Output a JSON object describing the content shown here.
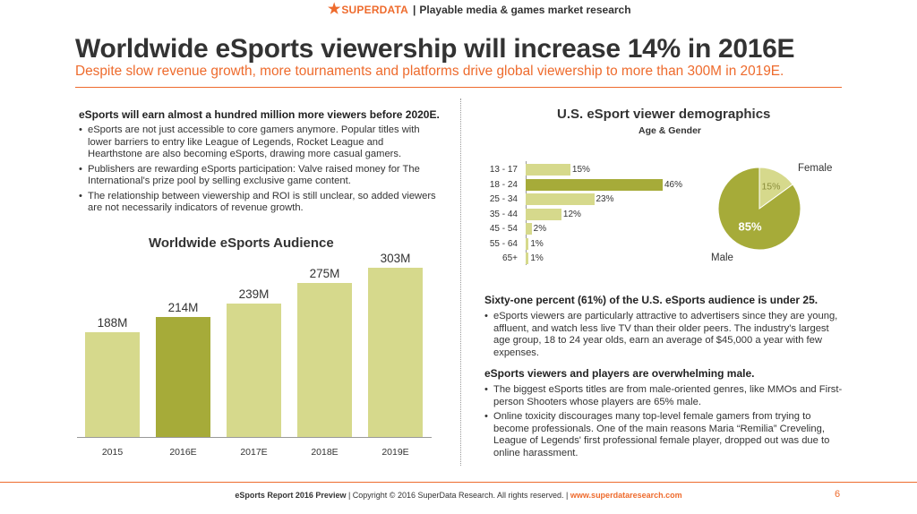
{
  "header": {
    "brand": "SUPERDATA",
    "tagline": "Playable media & games market research"
  },
  "title": "Worldwide eSports viewership will increase 14% in 2016E",
  "subtitle": "Despite slow revenue growth, more tournaments and platforms drive global viewership to more than 300M in 2019E.",
  "left": {
    "heading": "eSports will earn almost a hundred million more viewers before 2020E.",
    "bullets": [
      "eSports are not just accessible to core gamers anymore. Popular titles with lower barriers to entry like League of Legends, Rocket League and Hearthstone are also becoming eSports, drawing more casual gamers.",
      "Publishers are rewarding eSports participation: Valve raised money for The International's prize pool by selling exclusive game content.",
      "The relationship between viewership and ROI is still unclear, so added viewers are not necessarily indicators of revenue growth."
    ]
  },
  "right": {
    "heading1": "Sixty-one percent (61%) of the U.S. eSports audience is under 25.",
    "bullets1": [
      "eSports viewers are particularly attractive to advertisers since they are young, affluent, and watch less live TV than their older peers. The industry's largest age group, 18 to 24 year olds, earn an average of $45,000 a year with few expenses."
    ],
    "heading2": "eSports viewers and players are overwhelming male.",
    "bullets2": [
      "The biggest eSports titles are from male-oriented genres, like MMOs and First-person Shooters whose players are 65% male.",
      "Online toxicity discourages many top-level female gamers from trying to become professionals. One of the main reasons Maria “Remilia” Creveling, League of Legends' first professional female player, dropped out was due to online harassment."
    ]
  },
  "chart_data": [
    {
      "type": "bar",
      "title": "Worldwide eSports Audience",
      "categories": [
        "2015",
        "2016E",
        "2017E",
        "2018E",
        "2019E"
      ],
      "values": [
        188,
        214,
        239,
        275,
        303
      ],
      "value_labels": [
        "188M",
        "214M",
        "239M",
        "275M",
        "303M"
      ],
      "highlight_index": 1,
      "ylim": [
        0,
        320
      ],
      "colors": {
        "bar": "#d6d98c",
        "highlight": "#a6ab39"
      }
    },
    {
      "type": "bar",
      "orientation": "horizontal",
      "title": "U.S. eSport viewer demographics",
      "subtitle": "Age & Gender",
      "categories": [
        "13 - 17",
        "18 - 24",
        "25 - 34",
        "35 - 44",
        "45 - 54",
        "55 - 64",
        "65+"
      ],
      "values": [
        15,
        46,
        23,
        12,
        2,
        1,
        1
      ],
      "value_labels": [
        "15%",
        "46%",
        "23%",
        "12%",
        "2%",
        "1%",
        "1%"
      ],
      "highlight_index": 1,
      "xlim": [
        0,
        50
      ],
      "colors": {
        "bar": "#d6d98c",
        "highlight": "#a6ab39"
      }
    },
    {
      "type": "pie",
      "labels": [
        "Female",
        "Male"
      ],
      "values": [
        15,
        85
      ],
      "value_labels": [
        "15%",
        "85%"
      ],
      "colors": [
        "#d6d98c",
        "#a6ab39"
      ]
    }
  ],
  "footer": {
    "report": "eSports Report 2016 Preview",
    "copyright": " | Copyright © 2016 SuperData Research. All rights reserved. | ",
    "url": "www.superdataresearch.com",
    "page": "6"
  }
}
